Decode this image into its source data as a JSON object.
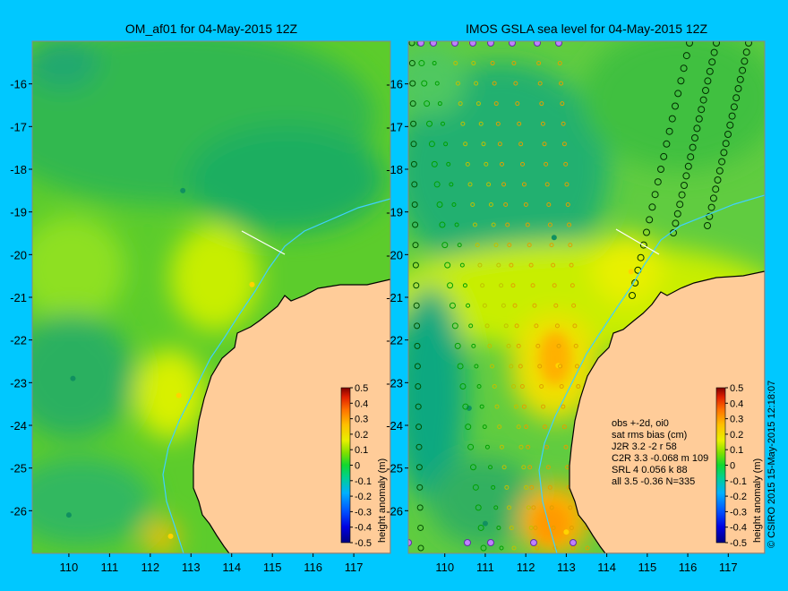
{
  "chart_data": [
    {
      "type": "heatmap",
      "title": "OM_af01 for 04-May-2015 12Z",
      "x_ticks": [
        110,
        111,
        112,
        113,
        114,
        115,
        116,
        117
      ],
      "y_ticks": [
        -16,
        -17,
        -18,
        -19,
        -20,
        -21,
        -22,
        -23,
        -24,
        -25,
        -26
      ],
      "xlim": [
        109.1,
        117.9
      ],
      "ylim": [
        -27.0,
        -15.0
      ],
      "colorbar": {
        "label": "height anomaly (m)",
        "ticks": [
          "0.5",
          "0.4",
          "0.3",
          "0.2",
          "0.1",
          "0",
          "-0.1",
          "-0.2",
          "-0.3",
          "-0.4",
          "-0.5"
        ],
        "range": [
          -0.5,
          0.5
        ]
      },
      "highs": [
        {
          "x": 114.5,
          "y": -20.7,
          "value": 0.12
        },
        {
          "x": 112.7,
          "y": -23.3,
          "value": 0.15
        },
        {
          "x": 112.5,
          "y": -26.6,
          "value": 0.25
        }
      ],
      "lows": [
        {
          "x": 110.1,
          "y": -22.9,
          "value": -0.1
        },
        {
          "x": 110.0,
          "y": -26.1,
          "value": -0.08
        },
        {
          "x": 112.8,
          "y": -18.5,
          "value": -0.06
        }
      ]
    },
    {
      "type": "heatmap",
      "title": "IMOS GSLA sea level  for 04-May-2015 12Z",
      "x_ticks": [
        110,
        111,
        112,
        113,
        114,
        115,
        116,
        117
      ],
      "y_ticks": [
        -16,
        -17,
        -18,
        -19,
        -20,
        -21,
        -22,
        -23,
        -24,
        -25,
        -26
      ],
      "xlim": [
        109.1,
        117.9
      ],
      "ylim": [
        -27.0,
        -15.0
      ],
      "colorbar": {
        "label": "height anomaly (m)",
        "ticks": [
          "0.5",
          "0.4",
          "0.3",
          "0.2",
          "0.1",
          "0",
          "-0.1",
          "-0.2",
          "-0.3",
          "-0.4",
          "-0.5"
        ],
        "range": [
          -0.5,
          0.5
        ]
      },
      "highs": [
        {
          "x": 112.8,
          "y": -22.6,
          "value": 0.25
        },
        {
          "x": 113.0,
          "y": -26.5,
          "value": 0.3
        },
        {
          "x": 114.6,
          "y": -20.4,
          "value": 0.15
        }
      ],
      "lows": [
        {
          "x": 112.7,
          "y": -19.6,
          "value": -0.12
        },
        {
          "x": 110.6,
          "y": -23.6,
          "value": -0.1
        },
        {
          "x": 111.0,
          "y": -26.3,
          "value": -0.1
        }
      ],
      "stats": {
        "lines": [
          "obs +-2d, oi0",
          "sat rms bias (cm)",
          "J2R   3.2  -2  r 58",
          "C2R   3.3 -0.068 m 109",
          "SRL   4  0.056 k 88",
          "all   3.5 -0.36 N=335"
        ]
      }
    }
  ],
  "credit": "© CSIRO 2015  15-May-2015 12:18:07"
}
